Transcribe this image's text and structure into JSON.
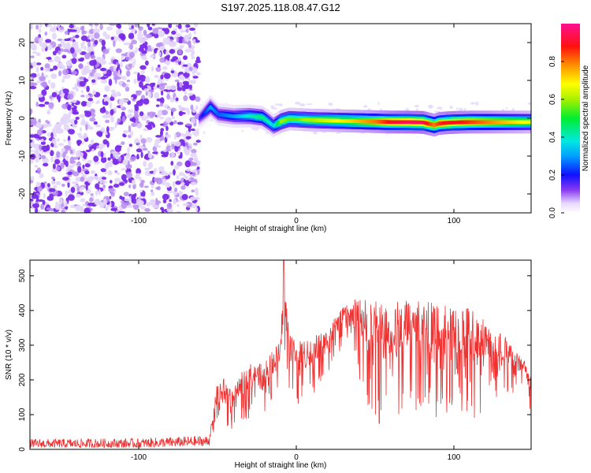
{
  "title": "S197.2025.118.08.47.G12",
  "chart_data": [
    {
      "type": "heatmap",
      "xlabel": "Height of straight line (km)",
      "ylabel": "Frequency (Hz)",
      "xlim": [
        -169,
        149
      ],
      "ylim": [
        -25,
        25
      ],
      "xticks": [
        -100,
        0,
        100
      ],
      "yticks": [
        -20,
        -10,
        0,
        10,
        20
      ],
      "colorbar": {
        "label": "Normalized spectral amplitude",
        "range": [
          0,
          1
        ],
        "ticks": [
          "0.0",
          "0.2",
          "0.4",
          "0.6",
          "0.8"
        ],
        "colormap": "rainbow"
      },
      "noise_region_x": [
        -169,
        -62
      ],
      "ridge": {
        "x": [
          -62,
          -55,
          -50,
          -40,
          -30,
          -22,
          -18,
          -15,
          -10,
          -5,
          0,
          5,
          10,
          20,
          30,
          40,
          50,
          60,
          70,
          80,
          84,
          87,
          90,
          95,
          100,
          110,
          120,
          130,
          140,
          149
        ],
        "freq": [
          0,
          3,
          1,
          0.5,
          0.6,
          0.2,
          -1,
          -2,
          -0.8,
          -0.2,
          -0.3,
          -0.4,
          -0.5,
          -0.6,
          -0.7,
          -0.8,
          -0.9,
          -1.0,
          -1.0,
          -1.1,
          -1.5,
          -1.8,
          -1.4,
          -1.2,
          -1.1,
          -1.0,
          -1.0,
          -1.0,
          -1.0,
          -1.0
        ],
        "amp": [
          0.15,
          0.3,
          0.25,
          0.3,
          0.4,
          0.45,
          0.4,
          0.35,
          0.6,
          0.55,
          0.55,
          0.6,
          0.6,
          0.65,
          0.7,
          0.75,
          0.8,
          0.9,
          0.95,
          0.95,
          0.85,
          0.8,
          0.85,
          0.9,
          0.9,
          0.85,
          0.8,
          0.75,
          0.7,
          0.65
        ]
      }
    },
    {
      "type": "line",
      "xlabel": "Height of straight line (km)",
      "ylabel": "SNR (10 * v/v)",
      "xlim": [
        -169,
        149
      ],
      "ylim": [
        0,
        545
      ],
      "xticks": [
        -100,
        0,
        100
      ],
      "yticks": [
        0,
        100,
        200,
        300,
        400,
        500
      ],
      "color": "#ef3333",
      "envelope": {
        "x": [
          -169,
          -100,
          -55,
          -50,
          -45,
          -40,
          -35,
          -30,
          -25,
          -20,
          -15,
          -10,
          -8,
          -5,
          0,
          10,
          20,
          30,
          40,
          50,
          60,
          70,
          80,
          90,
          100,
          110,
          120,
          130,
          140,
          149
        ],
        "upper": [
          30,
          32,
          40,
          200,
          210,
          170,
          220,
          250,
          240,
          260,
          290,
          310,
          545,
          360,
          310,
          320,
          360,
          410,
          440,
          430,
          420,
          440,
          430,
          420,
          410,
          420,
          380,
          340,
          290,
          230
        ],
        "lower": [
          5,
          5,
          10,
          70,
          40,
          60,
          80,
          90,
          140,
          100,
          150,
          160,
          200,
          180,
          120,
          140,
          190,
          310,
          200,
          60,
          90,
          100,
          120,
          80,
          100,
          70,
          120,
          160,
          140,
          90
        ]
      },
      "spike": {
        "x": -8,
        "y": 545
      }
    }
  ]
}
